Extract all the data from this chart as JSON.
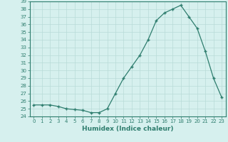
{
  "x": [
    0,
    1,
    2,
    3,
    4,
    5,
    6,
    7,
    8,
    9,
    10,
    11,
    12,
    13,
    14,
    15,
    16,
    17,
    18,
    19,
    20,
    21,
    22,
    23
  ],
  "y": [
    25.5,
    25.5,
    25.5,
    25.3,
    25.0,
    24.9,
    24.8,
    24.5,
    24.5,
    25.0,
    27.0,
    29.0,
    30.5,
    32.0,
    34.0,
    36.5,
    37.5,
    38.0,
    38.5,
    37.0,
    35.5,
    32.5,
    29.0,
    26.5
  ],
  "xlabel": "Humidex (Indice chaleur)",
  "line_color": "#2e7d6e",
  "marker": "+",
  "bg_color": "#d6f0ee",
  "grid_color": "#b8dbd8",
  "ylim_min": 24,
  "ylim_max": 39,
  "xlim_min": -0.5,
  "xlim_max": 23.5,
  "ytick_step": 1,
  "xticks": [
    0,
    1,
    2,
    3,
    4,
    5,
    6,
    7,
    8,
    9,
    10,
    11,
    12,
    13,
    14,
    15,
    16,
    17,
    18,
    19,
    20,
    21,
    22,
    23
  ],
  "label_fontsize": 6.5,
  "tick_fontsize": 5.0
}
